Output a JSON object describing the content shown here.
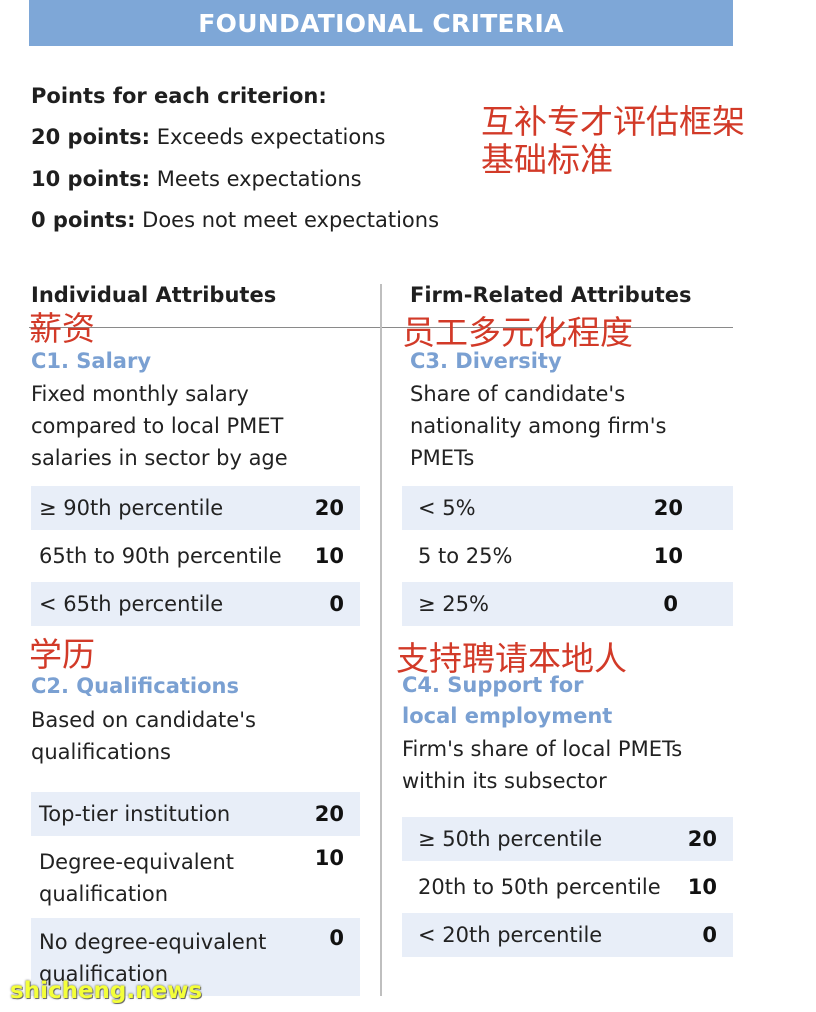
{
  "header": {
    "title": "FOUNDATIONAL CRITERIA"
  },
  "points": {
    "heading": "Points for each criterion:",
    "items": [
      {
        "label": "20 points:",
        "text": " Exceeds expectations"
      },
      {
        "label": "10 points:",
        "text": " Meets expectations"
      },
      {
        "label": "0 points:",
        "text": " Does not meet expectations"
      }
    ]
  },
  "annotations": {
    "title_line1": "互补专才评估框架",
    "title_line2": "基础标准",
    "salary": "薪资",
    "diversity": "员工多元化程度",
    "qualifications": "学历",
    "support": "支持聘请本地人"
  },
  "columns": {
    "individual": "Individual Attributes",
    "firm": "Firm-Related Attributes"
  },
  "c1": {
    "title": "C1. Salary",
    "desc": "Fixed monthly salary compared to local PMET salaries in sector by age",
    "rows": [
      {
        "label": "≥ 90th percentile",
        "value": "20"
      },
      {
        "label": "65th to 90th percentile",
        "value": "10"
      },
      {
        "label": "< 65th percentile",
        "value": "0"
      }
    ]
  },
  "c2": {
    "title": "C2. Qualifications",
    "desc": "Based on candidate's qualifications",
    "rows": [
      {
        "label": "Top-tier institution",
        "value": "20"
      },
      {
        "label": "Degree-equivalent qualification",
        "value": "10"
      },
      {
        "label": "No degree-equivalent qualification",
        "value": "0"
      }
    ]
  },
  "c3": {
    "title": "C3. Diversity",
    "desc": "Share of candidate's nationality among firm's PMETs",
    "rows": [
      {
        "label": "< 5%",
        "value": "20"
      },
      {
        "label": "5 to 25%",
        "value": "10"
      },
      {
        "label": "≥ 25%",
        "value": "0"
      }
    ]
  },
  "c4": {
    "title_line1": "C4. Support for",
    "title_line2": "local employment",
    "desc": "Firm's share of local PMETs within its subsector",
    "rows": [
      {
        "label": "≥ 50th percentile",
        "value": "20"
      },
      {
        "label": "20th to 50th percentile",
        "value": "10"
      },
      {
        "label": "< 20th percentile",
        "value": "0"
      }
    ]
  },
  "watermark": "shicheng.news"
}
